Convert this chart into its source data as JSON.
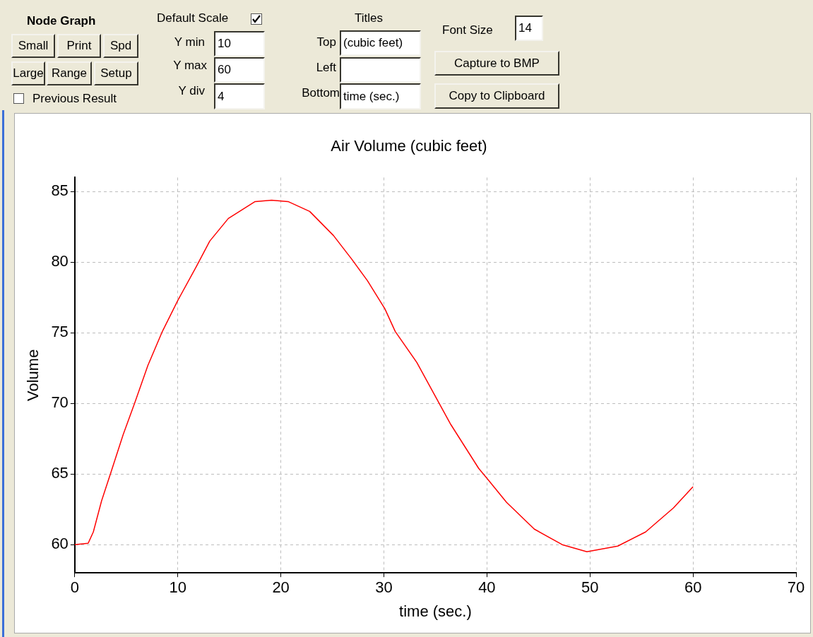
{
  "chart_data": [
    {
      "type": "other",
      "annotations": [
        "Node Graph",
        "Small",
        "Print",
        "Spd",
        "Large",
        "Range",
        "Setup",
        "Previous Result",
        "Default Scale",
        "Y min",
        "10",
        "Y max",
        "60",
        "Y div",
        "4",
        "Titles",
        "Top",
        "(cubic feet)",
        "Left",
        "Bottom",
        "time (sec.)",
        "Font Size",
        "14",
        "Capture to BMP",
        "Copy to Clipboard"
      ]
    },
    {
      "type": "line",
      "title": "Air Volume (cubic feet)",
      "xlabel": "time (sec.)",
      "ylabel": "Volume",
      "series": [
        {
          "color": "#ff0000",
          "x": [
            0,
            1.3,
            1.8,
            2.6,
            3.5,
            4.7,
            5.8,
            7.1,
            8.5,
            10,
            11.8,
            13.1,
            14.9,
            17.5,
            19.1,
            20.7,
            22.8,
            25.1,
            26.9,
            28.4,
            30.1,
            31.1,
            33.2,
            36.5,
            39.2,
            40,
            41.9,
            44.6,
            47.3,
            49.7,
            52.7,
            55.4,
            58.1,
            60
          ],
          "values": [
            60,
            60.1,
            60.9,
            63.1,
            65.1,
            67.8,
            70,
            72.7,
            75.1,
            77.3,
            79.7,
            81.5,
            83.1,
            84.3,
            84.4,
            84.3,
            83.6,
            81.9,
            80.2,
            78.7,
            76.7,
            75.1,
            72.9,
            68.5,
            65.4,
            64.7,
            63,
            61.1,
            60,
            59.5,
            59.9,
            60.9,
            62.6,
            64.1
          ]
        }
      ],
      "xlim": [
        0,
        70
      ],
      "xticks": [
        0,
        10,
        20,
        30,
        40,
        50,
        60,
        70
      ],
      "ylim": [
        58,
        86
      ],
      "yticks": [
        60,
        65,
        70,
        75,
        80,
        85
      ],
      "grid": true,
      "marker": "none",
      "line_style": "solid"
    }
  ]
}
